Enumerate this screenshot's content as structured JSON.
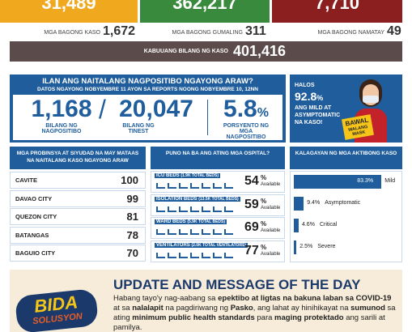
{
  "summary": {
    "active": "31,489",
    "recovered": "362,217",
    "deaths": "7,710",
    "new": [
      {
        "label": "MGA BAGONG KASO",
        "value": "1,672"
      },
      {
        "label": "MGA BAGONG GUMALING",
        "value": "311"
      },
      {
        "label": "MGA BAGONG NAMATAY",
        "value": "49"
      }
    ],
    "total": {
      "label": "KABUUANG BILANG NG KASO",
      "value": "401,416"
    }
  },
  "positivity": {
    "title": "ILAN ANG NAITALANG NAGPOSITIBO NGAYONG ARAW?",
    "subtitle": "DATOS NGAYONG NOBYEMBRE 11 AYON SA REPORTS NOONG NOBYEMBRE 10, 12NN",
    "positive": "1,168",
    "separator": "/",
    "tested": "20,047",
    "positive_label": "BILANG NG NAGPOSITIBO",
    "tested_label": "BILANG NG TINEST",
    "rate": "5.8",
    "rate_unit": "%",
    "rate_label": "PORSYENTO NG MGA NAGPOSITIBO"
  },
  "callout": {
    "lead": "HALOS",
    "value": "92.8",
    "unit": "%",
    "text": "ANG MILD AT ASYMPTOMATIC NA KASO!",
    "sign_lead": "BAWAL",
    "sign_text": "WALANG MASK"
  },
  "provinces": {
    "title": "MGA PROBINSYA AT SIYUDAD NA MAY MATAAS NA NAITALANG KASO NGAYONG ARAW",
    "rows": [
      [
        "CAVITE",
        "100"
      ],
      [
        "DAVAO CITY",
        "99"
      ],
      [
        "QUEZON CITY",
        "81"
      ],
      [
        "BATANGAS",
        "78"
      ],
      [
        "BAGUIO CITY",
        "70"
      ]
    ]
  },
  "hospitals": {
    "title": "PUNO NA BA ANG ATING MGA OSPITAL?",
    "items": [
      {
        "name": "ICU BEDS",
        "detail": "(1.9K TOTAL BEDS)",
        "value": "54",
        "unit": "%",
        "status": "Available"
      },
      {
        "name": "ISOLATION BEDS",
        "detail": "(13.5K TOTAL BEDS)",
        "value": "59",
        "unit": "%",
        "status": "Available"
      },
      {
        "name": "WARD BEDS",
        "detail": "(5.9K TOTAL BEDS)",
        "value": "69",
        "unit": "%",
        "status": "Available"
      },
      {
        "name": "VENTILATORS",
        "detail": "(2.0K TOTAL VENTILATORS)",
        "value": "77",
        "unit": "%",
        "status": "Available"
      }
    ]
  },
  "active_cases": {
    "title": "KALAGAYAN NG MGA AKTIBONG KASO",
    "items": [
      {
        "value": 83.3,
        "value_label": "83.3%",
        "name": "Mild"
      },
      {
        "value": 9.4,
        "value_label": "9.4%",
        "name": "Asymptomatic"
      },
      {
        "value": 4.6,
        "value_label": "4.6%",
        "name": "Critical"
      },
      {
        "value": 2.5,
        "value_label": "2.5%",
        "name": "Severe"
      }
    ]
  },
  "message": {
    "logo_top": "BIDA",
    "logo_bottom": "SOLUSYON",
    "title": "UPDATE AND MESSAGE OF THE DAY",
    "paragraph": [
      {
        "text": "Habang tayo'y nag-aabang sa ",
        "bold": false
      },
      {
        "text": "epektibo at ligtas na bakuna laban sa COVID-19",
        "bold": true
      },
      {
        "text": " at sa ",
        "bold": false
      },
      {
        "text": "nalalapit",
        "bold": true
      },
      {
        "text": " na pagdiriwang ng ",
        "bold": false
      },
      {
        "text": "Pasko",
        "bold": true
      },
      {
        "text": ", ang lahat ay hinihikayat na ",
        "bold": false
      },
      {
        "text": "sumunod",
        "bold": true
      },
      {
        "text": " sa ating ",
        "bold": false
      },
      {
        "text": "minimum public health standards",
        "bold": true
      },
      {
        "text": " para ",
        "bold": false
      },
      {
        "text": "maging protektado",
        "bold": true
      },
      {
        "text": " ang sarili at pamilya.",
        "bold": false
      }
    ]
  }
}
